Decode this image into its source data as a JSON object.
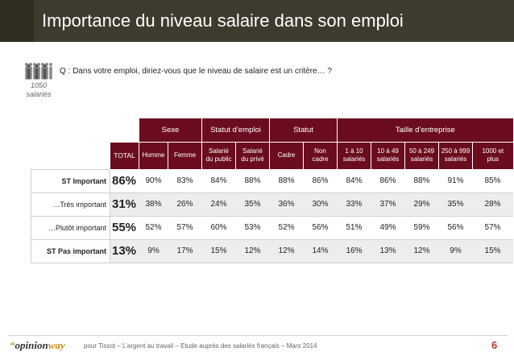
{
  "header": {
    "title": "Importance du niveau salaire dans son emploi"
  },
  "sample": {
    "count": "1050",
    "unit": "salariés"
  },
  "question": "Q : Dans votre emploi, diriez-vous que le niveau de salaire est un critère… ?",
  "table": {
    "groups": [
      "Sexe",
      "Statut d’emploi",
      "Statut",
      "Taille d’entreprise"
    ],
    "columns": {
      "total": "TOTAL",
      "homme": "Homme",
      "femme": "Femme",
      "public_l1": "Salarié",
      "public_l2": "du public",
      "prive_l1": "Salarié",
      "prive_l2": "du privé",
      "cadre": "Cadre",
      "noncadre_l1": "Non",
      "noncadre_l2": "cadre",
      "t1_l1": "1 à 10",
      "t1_l2": "salariés",
      "t2_l1": "10 à 49",
      "t2_l2": "salariés",
      "t3_l1": "50 à 249",
      "t3_l2": "salariés",
      "t4_l1": "250 à 999",
      "t4_l2": "salariés",
      "t5_l1": "1000 et",
      "t5_l2": "plus"
    },
    "rows": [
      {
        "label": "ST Important",
        "values": [
          "86%",
          "90%",
          "83%",
          "84%",
          "88%",
          "88%",
          "86%",
          "84%",
          "86%",
          "88%",
          "91%",
          "85%"
        ]
      },
      {
        "label": "…Très important",
        "values": [
          "31%",
          "38%",
          "26%",
          "24%",
          "35%",
          "36%",
          "30%",
          "33%",
          "37%",
          "29%",
          "35%",
          "28%"
        ]
      },
      {
        "label": "…Plutôt important",
        "values": [
          "55%",
          "52%",
          "57%",
          "60%",
          "53%",
          "52%",
          "56%",
          "51%",
          "49%",
          "59%",
          "56%",
          "57%"
        ]
      },
      {
        "label": "ST Pas important",
        "values": [
          "13%",
          "9%",
          "17%",
          "15%",
          "12%",
          "12%",
          "14%",
          "16%",
          "13%",
          "12%",
          "9%",
          "15%"
        ]
      }
    ]
  },
  "footer": {
    "logo_quote": "“",
    "logo_opinion": "opinion",
    "logo_way": "way",
    "text": "pour Tissot – L’argent au travail – Etude auprès des salariés français – Mars 2014",
    "page": "6"
  },
  "colors": {
    "title_bg": "#3e3b2e",
    "header_bg": "#6b0d1e",
    "accent": "#d08a16",
    "page_number": "#c0392b"
  }
}
